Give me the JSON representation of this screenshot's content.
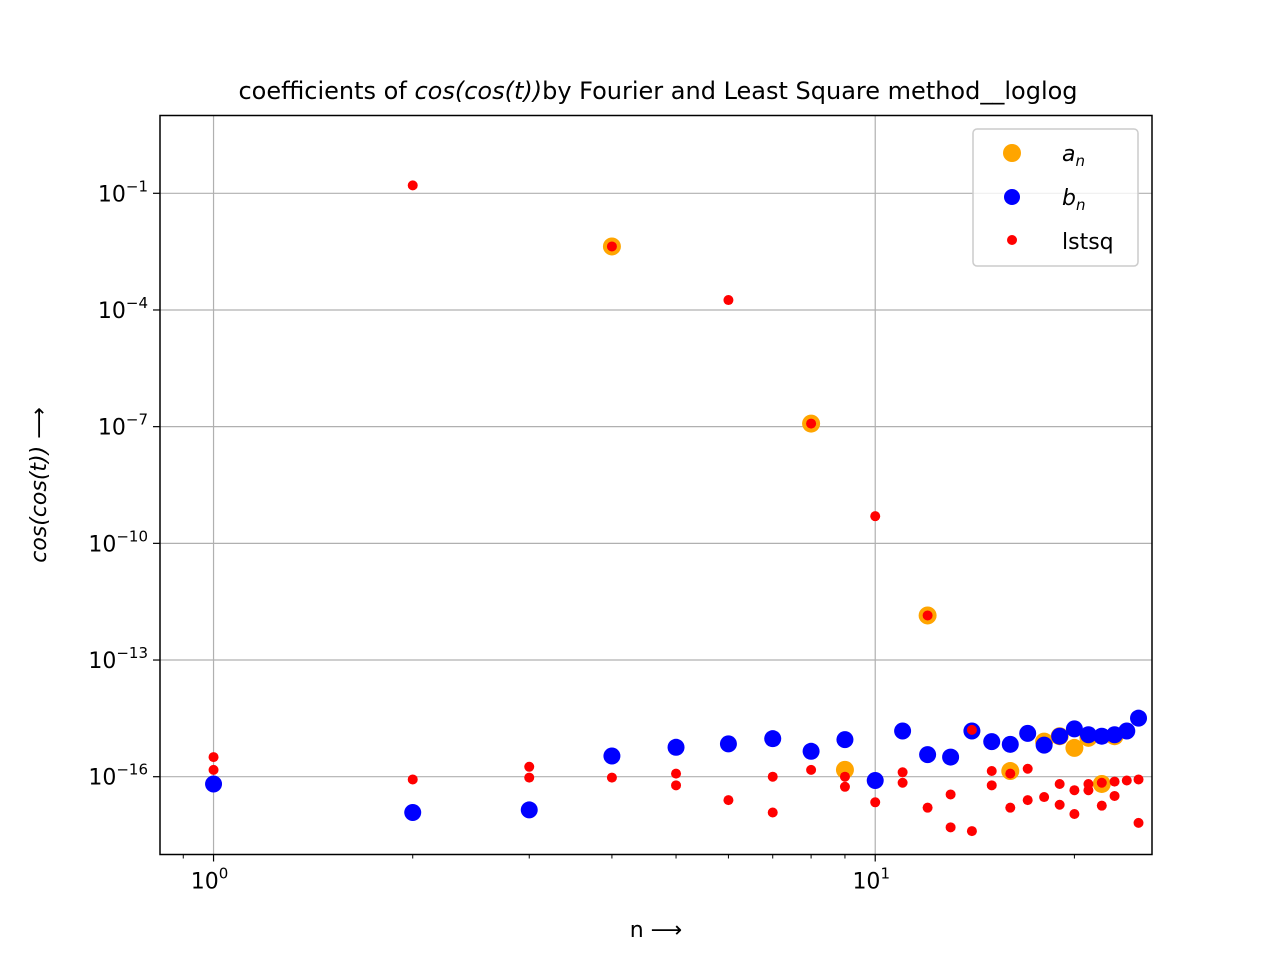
{
  "chart_data": {
    "type": "scatter",
    "title": {
      "pre": "coefficients of ",
      "math": "cos(cos(t))",
      "post": "by Fourier and Least Square method__loglog"
    },
    "xlabel": "n ⟶",
    "ylabel": {
      "math": "cos(cos(t))",
      "post": " ⟶"
    },
    "xscale": "log",
    "yscale": "log",
    "xlim": [
      0.83,
      26.2
    ],
    "ylim": [
      1e-18,
      10.0
    ],
    "grid": true,
    "legend_position": "top-right",
    "x_ticks": [
      {
        "value": 1,
        "label": "10",
        "exp": "0"
      },
      {
        "value": 10,
        "label": "10",
        "exp": "1"
      }
    ],
    "y_ticks": [
      {
        "value": 1e-16,
        "label": "10",
        "exp": "−16"
      },
      {
        "value": 1e-13,
        "label": "10",
        "exp": "−13"
      },
      {
        "value": 1e-10,
        "label": "10",
        "exp": "−10"
      },
      {
        "value": 1e-07,
        "label": "10",
        "exp": "−7"
      },
      {
        "value": 0.0001,
        "label": "10",
        "exp": "−4"
      },
      {
        "value": 0.1,
        "label": "10",
        "exp": "−1"
      }
    ],
    "series": [
      {
        "name": "a_n",
        "legend_base": "a",
        "legend_sub": "n",
        "color": "#ffa500",
        "marker_size": "large",
        "points": [
          [
            4,
            0.0043
          ],
          [
            8,
            1.2e-07
          ],
          [
            12,
            1.4e-12
          ],
          [
            9,
            1.5e-16
          ],
          [
            16,
            1.4e-16
          ],
          [
            18,
            8e-16
          ],
          [
            19,
            1.1e-15
          ],
          [
            20,
            5.5e-16
          ],
          [
            21,
            1e-15
          ],
          [
            22,
            6.5e-17
          ],
          [
            23,
            1.1e-15
          ]
        ]
      },
      {
        "name": "b_n",
        "legend_base": "b",
        "legend_sub": "n",
        "color": "#0000ff",
        "marker_size": "large",
        "points": [
          [
            1,
            6.5e-17
          ],
          [
            2,
            1.2e-17
          ],
          [
            3,
            1.4e-17
          ],
          [
            4,
            3.4e-16
          ],
          [
            5,
            5.7e-16
          ],
          [
            6,
            7e-16
          ],
          [
            7,
            9.5e-16
          ],
          [
            8,
            4.5e-16
          ],
          [
            9,
            9e-16
          ],
          [
            10,
            8e-17
          ],
          [
            11,
            1.5e-15
          ],
          [
            12,
            3.7e-16
          ],
          [
            13,
            3.2e-16
          ],
          [
            14,
            1.5e-15
          ],
          [
            15,
            8e-16
          ],
          [
            16,
            6.8e-16
          ],
          [
            17,
            1.3e-15
          ],
          [
            18,
            6.5e-16
          ],
          [
            19,
            1.1e-15
          ],
          [
            20,
            1.7e-15
          ],
          [
            21,
            1.2e-15
          ],
          [
            22,
            1.1e-15
          ],
          [
            23,
            1.2e-15
          ],
          [
            24,
            1.5e-15
          ],
          [
            25,
            3.2e-15
          ]
        ]
      },
      {
        "name": "lstsq",
        "legend_base": "lstsq",
        "legend_sub": "",
        "color": "#ff0000",
        "marker_size": "small",
        "points": [
          [
            1,
            3.2e-16
          ],
          [
            1,
            1.5e-16
          ],
          [
            2,
            0.16
          ],
          [
            2,
            8.5e-17
          ],
          [
            3,
            1.8e-16
          ],
          [
            3,
            9.5e-17
          ],
          [
            4,
            0.0043
          ],
          [
            4,
            9.5e-17
          ],
          [
            5,
            1.2e-16
          ],
          [
            5,
            6e-17
          ],
          [
            6,
            0.00018
          ],
          [
            6,
            2.5e-17
          ],
          [
            7,
            1e-16
          ],
          [
            7,
            1.2e-17
          ],
          [
            8,
            1.2e-07
          ],
          [
            8,
            1.5e-16
          ],
          [
            9,
            1e-16
          ],
          [
            9,
            5.5e-17
          ],
          [
            10,
            5e-10
          ],
          [
            10,
            2.2e-17
          ],
          [
            11,
            1.3e-16
          ],
          [
            11,
            7e-17
          ],
          [
            12,
            1.4e-12
          ],
          [
            12,
            1.6e-17
          ],
          [
            13,
            3.5e-17
          ],
          [
            13,
            5e-18
          ],
          [
            14,
            1.6e-15
          ],
          [
            14,
            4e-18
          ],
          [
            15,
            1.4e-16
          ],
          [
            15,
            6e-17
          ],
          [
            16,
            1.2e-16
          ],
          [
            16,
            1.6e-17
          ],
          [
            17,
            1.6e-16
          ],
          [
            17,
            2.5e-17
          ],
          [
            18,
            3e-17
          ],
          [
            19,
            6.5e-17
          ],
          [
            19,
            1.9e-17
          ],
          [
            20,
            4.5e-17
          ],
          [
            20,
            1.1e-17
          ],
          [
            21,
            6.5e-17
          ],
          [
            21,
            4.5e-17
          ],
          [
            22,
            7e-17
          ],
          [
            22,
            1.8e-17
          ],
          [
            23,
            7.5e-17
          ],
          [
            23,
            3.2e-17
          ],
          [
            24,
            8e-17
          ],
          [
            25,
            8.5e-17
          ],
          [
            25,
            6.5e-18
          ]
        ]
      }
    ]
  }
}
